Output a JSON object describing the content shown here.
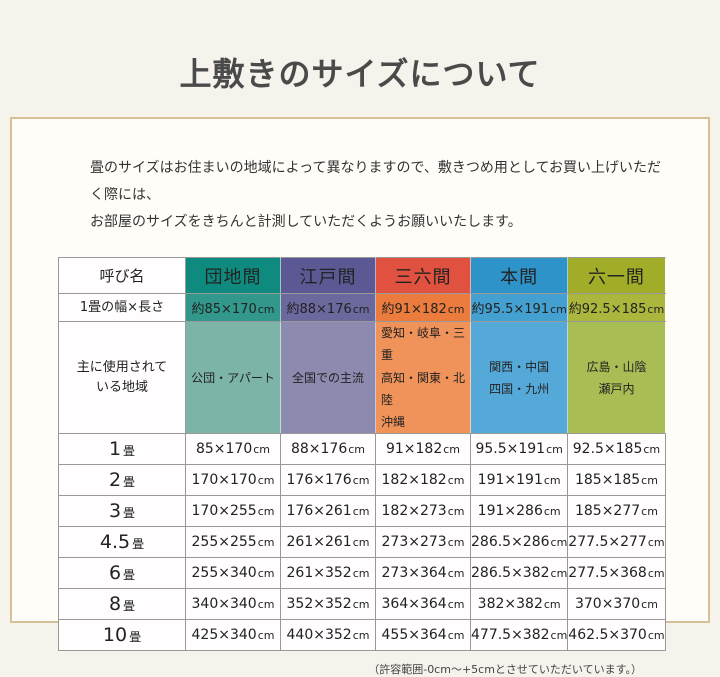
{
  "page": {
    "title": "上敷きのサイズについて",
    "intro_line1": "畳のサイズはお住まいの地域によって異なりますので、敷きつめ用としてお買い上げいただく際には、",
    "intro_line2": "お部屋のサイズをきちんと計測していただくようお願いいたします。",
    "footer_note": "（許容範囲-0cm～+5cmとさせていただいています。）"
  },
  "colors": {
    "page_background": "#F6F3ED",
    "panel_background": "#FFFDF8",
    "panel_border": "#D6C196",
    "grid_line": "#999999",
    "title_text": "#4A4A4A"
  },
  "table": {
    "corner_header": "呼び名",
    "size_row_label": "1畳の幅×長さ",
    "regions_row_label_line1": "主に使用されて",
    "regions_row_label_line2": "いる地域",
    "columns": [
      {
        "name": "団地間",
        "size": "約85×170",
        "size_unit": "cm",
        "regions": [
          "公団・アパート"
        ],
        "color_dark": "#0E8B7E",
        "color_mid": "#31988B",
        "color_light": "#7CB4A7"
      },
      {
        "name": "江戸間",
        "size": "約88×176",
        "size_unit": "cm",
        "regions": [
          "全国での主流"
        ],
        "color_dark": "#5B5894",
        "color_mid": "#6B689E",
        "color_light": "#8D8AB0"
      },
      {
        "name": "三六間",
        "size": "約91×182",
        "size_unit": "cm",
        "regions": [
          "愛知・岐阜・三重",
          "高知・関東・北陸",
          "沖縄"
        ],
        "color_dark": "#E0523F",
        "color_mid": "#EC7C3E",
        "color_light": "#F0935A"
      },
      {
        "name": "本間",
        "size": "約95.5×191",
        "size_unit": "cm",
        "regions": [
          "関西・中国",
          "四国・九州"
        ],
        "color_dark": "#2E93C8",
        "color_mid": "#43A0D1",
        "color_light": "#55A9D8"
      },
      {
        "name": "六一間",
        "size": "約92.5×185",
        "size_unit": "cm",
        "regions": [
          "広島・山陰",
          "瀬戸内"
        ],
        "color_dark": "#A1AD28",
        "color_mid": "#ABB63D",
        "color_light": "#A9BD55"
      }
    ],
    "unit_suffix": "cm",
    "rows": [
      {
        "label_num": "1",
        "label_unit": "畳",
        "values": [
          "85×170",
          "88×176",
          "91×182",
          "95.5×191",
          "92.5×185"
        ]
      },
      {
        "label_num": "2",
        "label_unit": "畳",
        "values": [
          "170×170",
          "176×176",
          "182×182",
          "191×191",
          "185×185"
        ]
      },
      {
        "label_num": "3",
        "label_unit": "畳",
        "values": [
          "170×255",
          "176×261",
          "182×273",
          "191×286",
          "185×277"
        ]
      },
      {
        "label_num": "4.5",
        "label_unit": "畳",
        "values": [
          "255×255",
          "261×261",
          "273×273",
          "286.5×286",
          "277.5×277"
        ]
      },
      {
        "label_num": "6",
        "label_unit": "畳",
        "values": [
          "255×340",
          "261×352",
          "273×364",
          "286.5×382",
          "277.5×368"
        ]
      },
      {
        "label_num": "8",
        "label_unit": "畳",
        "values": [
          "340×340",
          "352×352",
          "364×364",
          "382×382",
          "370×370"
        ]
      },
      {
        "label_num": "10",
        "label_unit": "畳",
        "values": [
          "425×340",
          "440×352",
          "455×364",
          "477.5×382",
          "462.5×370"
        ]
      }
    ]
  }
}
